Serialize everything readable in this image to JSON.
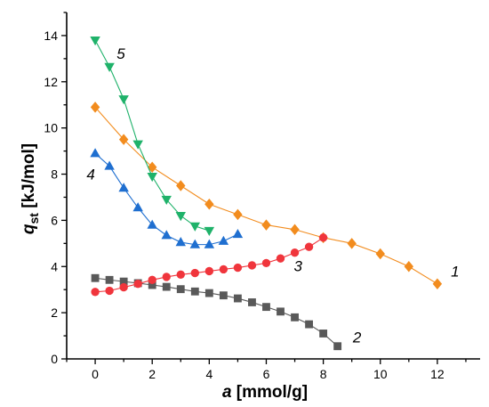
{
  "chart_data": {
    "type": "line",
    "xlabel": {
      "symbol": "a",
      "unit": " [mmol/g]"
    },
    "ylabel": {
      "symbol": "q",
      "subscript": "st",
      "unit": "  [kJ/mol]"
    },
    "xlim": [
      -1,
      13.5
    ],
    "ylim": [
      0,
      15
    ],
    "xticks": [
      0,
      2,
      4,
      6,
      8,
      10,
      12
    ],
    "yticks": [
      0,
      2,
      4,
      6,
      8,
      10,
      12,
      14
    ],
    "grid": false,
    "legend": "none",
    "series": [
      {
        "name": "1",
        "color": "#f28c1e",
        "marker": "diamond",
        "x": [
          0,
          1,
          2,
          3,
          4,
          5,
          6,
          7,
          8,
          9,
          10,
          11,
          12
        ],
        "y": [
          10.9,
          9.5,
          8.3,
          7.5,
          6.7,
          6.25,
          5.8,
          5.6,
          5.25,
          5.0,
          4.55,
          4.0,
          3.25
        ]
      },
      {
        "name": "2",
        "color": "#595959",
        "marker": "square",
        "x": [
          0,
          0.5,
          1,
          1.5,
          2,
          2.5,
          3,
          3.5,
          4,
          4.5,
          5,
          5.5,
          6,
          6.5,
          7,
          7.5,
          8,
          8.5
        ],
        "y": [
          3.5,
          3.42,
          3.35,
          3.28,
          3.2,
          3.12,
          3.02,
          2.92,
          2.85,
          2.75,
          2.62,
          2.45,
          2.25,
          2.05,
          1.8,
          1.5,
          1.1,
          0.55
        ]
      },
      {
        "name": "3",
        "color": "#f0353c",
        "marker": "circle",
        "x": [
          0,
          0.5,
          1,
          1.5,
          2,
          2.5,
          3,
          3.5,
          4,
          4.5,
          5,
          5.5,
          6,
          6.5,
          7,
          7.5,
          8
        ],
        "y": [
          2.9,
          2.95,
          3.1,
          3.25,
          3.42,
          3.55,
          3.65,
          3.72,
          3.8,
          3.88,
          3.95,
          4.05,
          4.15,
          4.35,
          4.6,
          4.85,
          5.25
        ]
      },
      {
        "name": "4",
        "color": "#1f6fd0",
        "marker": "triangle-up",
        "x": [
          0,
          0.5,
          1,
          1.5,
          2,
          2.5,
          3,
          3.5,
          4,
          4.5,
          5
        ],
        "y": [
          8.9,
          8.35,
          7.4,
          6.55,
          5.8,
          5.35,
          5.05,
          4.95,
          4.95,
          5.1,
          5.4
        ]
      },
      {
        "name": "5",
        "color": "#1fb26a",
        "marker": "triangle-down",
        "x": [
          0,
          0.5,
          1,
          1.5,
          2,
          2.5,
          3,
          3.5,
          4
        ],
        "y": [
          13.8,
          12.65,
          11.25,
          9.3,
          7.9,
          6.9,
          6.2,
          5.75,
          5.55
        ]
      }
    ],
    "curve_labels": [
      {
        "text": "1",
        "series": "1"
      },
      {
        "text": "2",
        "series": "2"
      },
      {
        "text": "3",
        "series": "3"
      },
      {
        "text": "4",
        "series": "4"
      },
      {
        "text": "5",
        "series": "5"
      }
    ]
  }
}
